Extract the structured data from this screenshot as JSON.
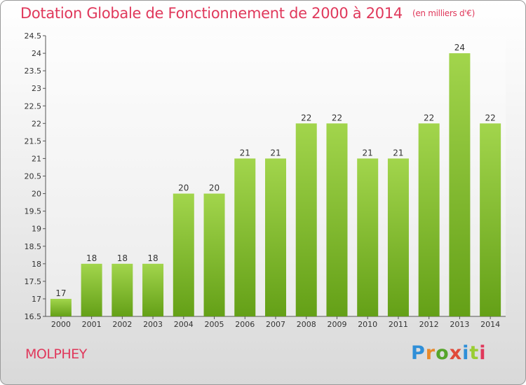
{
  "title": "Dotation Globale de Fonctionnement de 2000 à 2014",
  "unit_note": "(en milliers d'€)",
  "commune": "MOLPHEY",
  "logo": {
    "text": "Proxiti",
    "letter_colors": [
      "#2f8fd8",
      "#e8892a",
      "#56a52a",
      "#e04a3a",
      "#2f8fd8",
      "#9acd32",
      "#e0385b"
    ]
  },
  "colors": {
    "title": "#e0385b",
    "bar_light": "#a2d54c",
    "bar_dark": "#64a017"
  },
  "chart_data": {
    "type": "bar",
    "title": "Dotation Globale de Fonctionnement de 2000 à 2014",
    "xlabel": "",
    "ylabel": "",
    "categories": [
      "2000",
      "2001",
      "2002",
      "2003",
      "2004",
      "2005",
      "2006",
      "2007",
      "2008",
      "2009",
      "2010",
      "2011",
      "2012",
      "2013",
      "2014"
    ],
    "values": [
      17,
      18,
      18,
      18,
      20,
      20,
      21,
      21,
      22,
      22,
      21,
      21,
      22,
      24,
      22
    ],
    "ylim": [
      16.5,
      24.5
    ],
    "yticks": [
      "16.5",
      "17",
      "17.5",
      "18",
      "18.5",
      "19",
      "19.5",
      "20",
      "20.5",
      "21",
      "21.5",
      "22",
      "22.5",
      "23",
      "23.5",
      "24",
      "24.5"
    ],
    "grid": false
  }
}
